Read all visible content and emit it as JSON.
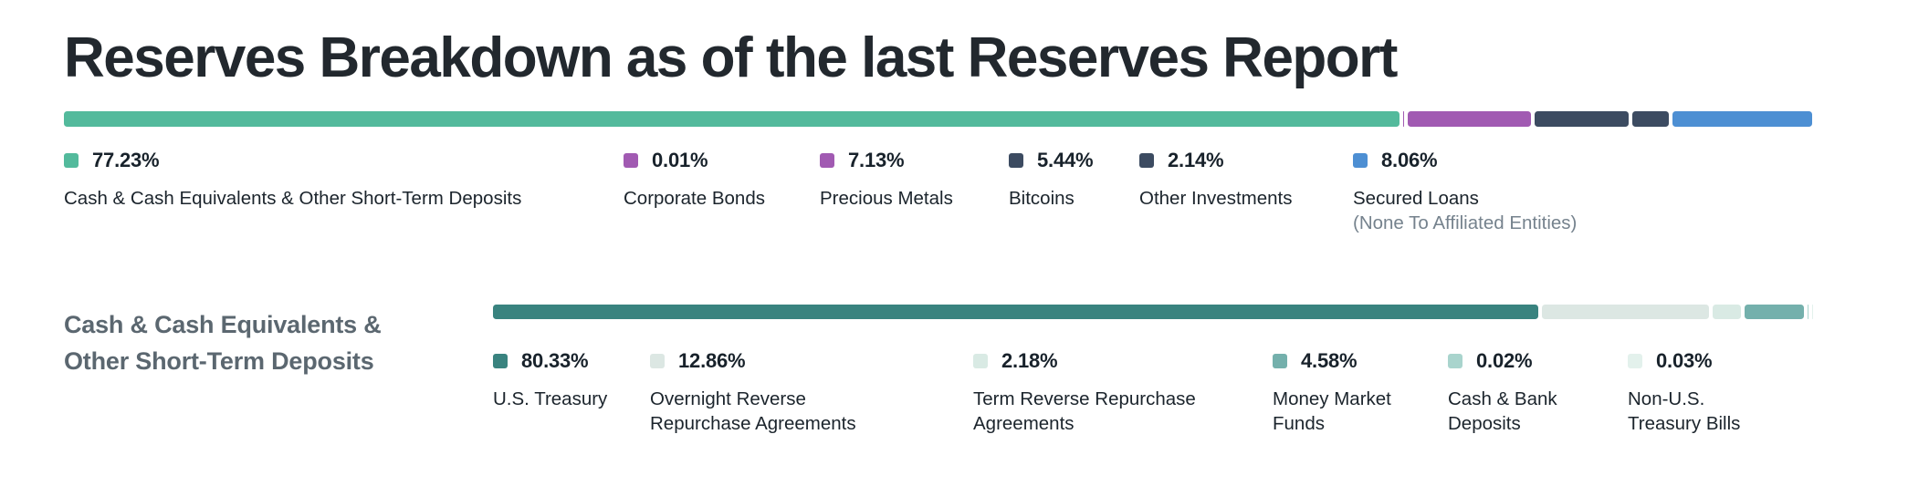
{
  "title": "Reserves Breakdown as of the last Reserves Report",
  "reserves": {
    "items": [
      {
        "pct": "77.23%",
        "value": 77.23,
        "label": "Cash & Cash Equivalents & Other Short-Term Deposits",
        "color": "#53BA9C"
      },
      {
        "pct": "0.01%",
        "value": 0.01,
        "label": "Corporate Bonds",
        "color": "#A15AB2"
      },
      {
        "pct": "7.13%",
        "value": 7.13,
        "label": "Precious Metals",
        "color": "#A15AB2"
      },
      {
        "pct": "5.44%",
        "value": 5.44,
        "label": "Bitcoins",
        "color": "#3C4B61"
      },
      {
        "pct": "2.14%",
        "value": 2.14,
        "label": "Other Investments",
        "color": "#3C4B61"
      },
      {
        "pct": "8.06%",
        "value": 8.06,
        "label": "Secured Loans",
        "sublabel": "(None To Affiliated Entities)",
        "color": "#4D8FD3"
      }
    ]
  },
  "cash_section": {
    "heading": "Cash & Cash Equivalents & Other Short-Term Deposits",
    "items": [
      {
        "pct": "80.33%",
        "value": 80.33,
        "label": "U.S. Treasury",
        "color": "#39837F"
      },
      {
        "pct": "12.86%",
        "value": 12.86,
        "label": "Overnight Reverse Repurchase Agreements",
        "color": "#DCE7E3"
      },
      {
        "pct": "2.18%",
        "value": 2.18,
        "label": "Term Reverse Repurchase Agreements",
        "color": "#D9EAE4"
      },
      {
        "pct": "4.58%",
        "value": 4.58,
        "label": "Money Market Funds",
        "color": "#74B0AC"
      },
      {
        "pct": "0.02%",
        "value": 0.02,
        "label": "Cash & Bank Deposits",
        "color": "#A9D4CD"
      },
      {
        "pct": "0.03%",
        "value": 0.03,
        "label": "Non-U.S. Treasury Bills",
        "color": "#E3F1EC"
      }
    ]
  },
  "chart_data": [
    {
      "type": "bar",
      "subtype": "stacked-horizontal-single-row",
      "title": "Reserves Breakdown as of the last Reserves Report",
      "categories": [
        "Cash & Cash Equivalents & Other Short-Term Deposits",
        "Corporate Bonds",
        "Precious Metals",
        "Bitcoins",
        "Other Investments",
        "Secured Loans (None To Affiliated Entities)"
      ],
      "values": [
        77.23,
        0.01,
        7.13,
        5.44,
        2.14,
        8.06
      ],
      "unit": "%",
      "xlim": [
        0,
        100
      ],
      "colors": [
        "#53BA9C",
        "#A15AB2",
        "#A15AB2",
        "#3C4B61",
        "#3C4B61",
        "#4D8FD3"
      ],
      "legend_position": "below-bar"
    },
    {
      "type": "bar",
      "subtype": "stacked-horizontal-single-row",
      "title": "Cash & Cash Equivalents & Other Short-Term Deposits",
      "categories": [
        "U.S. Treasury",
        "Overnight Reverse Repurchase Agreements",
        "Term Reverse Repurchase Agreements",
        "Money Market Funds",
        "Cash & Bank Deposits",
        "Non-U.S. Treasury Bills"
      ],
      "values": [
        80.33,
        12.86,
        2.18,
        4.58,
        0.02,
        0.03
      ],
      "unit": "%",
      "xlim": [
        0,
        100
      ],
      "colors": [
        "#39837F",
        "#DCE7E3",
        "#D9EAE4",
        "#74B0AC",
        "#A9D4CD",
        "#E3F1EC"
      ],
      "legend_position": "below-bar"
    }
  ]
}
